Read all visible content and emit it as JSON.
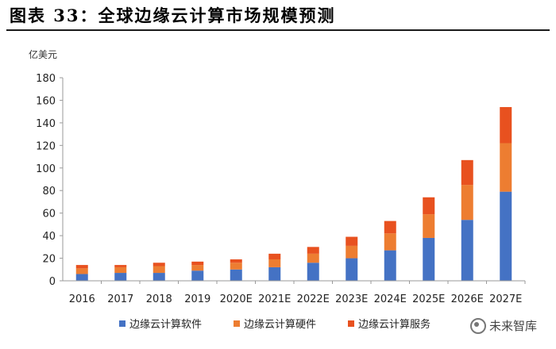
{
  "figure_title": "图表 33：全球边缘云计算市场规模预测",
  "watermark": {
    "text": "未来智库",
    "icon": "wechat-icon"
  },
  "chart_data": {
    "type": "bar",
    "stacked": true,
    "title": "",
    "xlabel": "",
    "ylabel": "亿美元",
    "ylim": [
      0,
      180
    ],
    "yticks": [
      0,
      20,
      40,
      60,
      80,
      100,
      120,
      140,
      160,
      180
    ],
    "grid": false,
    "legend": "bottom",
    "categories": [
      "2016",
      "2017",
      "2018",
      "2019",
      "2020E",
      "2021E",
      "2022E",
      "2023E",
      "2024E",
      "2025E",
      "2026E",
      "2027E"
    ],
    "series": [
      {
        "name": "边缘云计算软件",
        "color": "#4472C4",
        "values": [
          6,
          7,
          7,
          9,
          10,
          12,
          16,
          20,
          27,
          38,
          54,
          79
        ]
      },
      {
        "name": "边缘云计算硬件",
        "color": "#ED7D31",
        "values": [
          5,
          5,
          6,
          5,
          6,
          7,
          8,
          11,
          15,
          21,
          31,
          43
        ]
      },
      {
        "name": "边缘云计算服务",
        "color": "#E8511F",
        "values": [
          3,
          2,
          3,
          3,
          3,
          5,
          6,
          8,
          11,
          15,
          22,
          32
        ]
      }
    ]
  }
}
